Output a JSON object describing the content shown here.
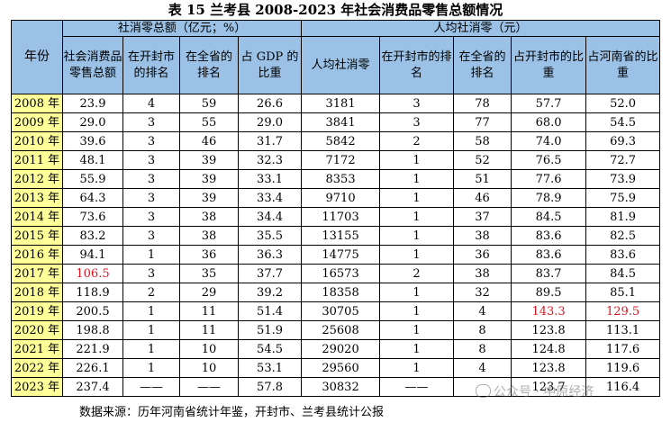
{
  "title": "表 15  兰考县 2008-2023 年社会消费品零售总额情况",
  "headers": {
    "year": "年份",
    "group_total": "社消零总额（亿元；%）",
    "group_percapita": "人均社消零（元）",
    "total_value": "社会消费品零售总额",
    "total_kaifeng_rank": "在开封市的排名",
    "total_province_rank": "在全省的排名",
    "total_gdp_share": "占 GDP 的比重",
    "pc_value": "人均社消零",
    "pc_kaifeng_rank": "在开封市的排名",
    "pc_province_rank": "在全省的排名",
    "pc_kaifeng_share": "占开封市的比重",
    "pc_henan_share": "占河南省的比重"
  },
  "rows": [
    {
      "year": "2008 年",
      "total": "23.9",
      "kf_rank": "4",
      "prov_rank": "59",
      "gdp_share": "26.6",
      "pc": "3181",
      "pc_kf_rank": "3",
      "pc_prov_rank": "78",
      "pc_kf_share": "57.7",
      "pc_hn_share": "52.0"
    },
    {
      "year": "2009 年",
      "total": "29.0",
      "kf_rank": "3",
      "prov_rank": "55",
      "gdp_share": "29.0",
      "pc": "3841",
      "pc_kf_rank": "3",
      "pc_prov_rank": "77",
      "pc_kf_share": "68.0",
      "pc_hn_share": "54.5"
    },
    {
      "year": "2010 年",
      "total": "39.6",
      "kf_rank": "3",
      "prov_rank": "46",
      "gdp_share": "31.7",
      "pc": "5842",
      "pc_kf_rank": "2",
      "pc_prov_rank": "58",
      "pc_kf_share": "74.0",
      "pc_hn_share": "69.3"
    },
    {
      "year": "2011 年",
      "total": "48.1",
      "kf_rank": "3",
      "prov_rank": "39",
      "gdp_share": "32.3",
      "pc": "7172",
      "pc_kf_rank": "1",
      "pc_prov_rank": "52",
      "pc_kf_share": "76.5",
      "pc_hn_share": "72.7"
    },
    {
      "year": "2012 年",
      "total": "55.9",
      "kf_rank": "3",
      "prov_rank": "39",
      "gdp_share": "33.1",
      "pc": "8353",
      "pc_kf_rank": "1",
      "pc_prov_rank": "51",
      "pc_kf_share": "77.6",
      "pc_hn_share": "73.9"
    },
    {
      "year": "2013 年",
      "total": "64.3",
      "kf_rank": "3",
      "prov_rank": "39",
      "gdp_share": "33.4",
      "pc": "9710",
      "pc_kf_rank": "1",
      "pc_prov_rank": "46",
      "pc_kf_share": "78.9",
      "pc_hn_share": "75.9"
    },
    {
      "year": "2014 年",
      "total": "73.6",
      "kf_rank": "3",
      "prov_rank": "38",
      "gdp_share": "34.4",
      "pc": "11703",
      "pc_kf_rank": "1",
      "pc_prov_rank": "37",
      "pc_kf_share": "84.5",
      "pc_hn_share": "81.9"
    },
    {
      "year": "2015 年",
      "total": "83.2",
      "kf_rank": "3",
      "prov_rank": "38",
      "gdp_share": "35.5",
      "pc": "13155",
      "pc_kf_rank": "1",
      "pc_prov_rank": "38",
      "pc_kf_share": "83.6",
      "pc_hn_share": "82.5"
    },
    {
      "year": "2016 年",
      "total": "94.1",
      "kf_rank": "1",
      "prov_rank": "36",
      "gdp_share": "36.3",
      "pc": "14775",
      "pc_kf_rank": "1",
      "pc_prov_rank": "36",
      "pc_kf_share": "83.6",
      "pc_hn_share": "83.6"
    },
    {
      "year": "2017 年",
      "total": "106.5",
      "kf_rank": "3",
      "prov_rank": "35",
      "gdp_share": "37.7",
      "pc": "16573",
      "pc_kf_rank": "2",
      "pc_prov_rank": "38",
      "pc_kf_share": "83.7",
      "pc_hn_share": "84.5"
    },
    {
      "year": "2018 年",
      "total": "118.9",
      "kf_rank": "2",
      "prov_rank": "29",
      "gdp_share": "39.2",
      "pc": "18358",
      "pc_kf_rank": "1",
      "pc_prov_rank": "32",
      "pc_kf_share": "89.5",
      "pc_hn_share": "85.1"
    },
    {
      "year": "2019 年",
      "total": "200.5",
      "kf_rank": "1",
      "prov_rank": "11",
      "gdp_share": "51.4",
      "pc": "30705",
      "pc_kf_rank": "1",
      "pc_prov_rank": "4",
      "pc_kf_share": "143.3",
      "pc_hn_share": "129.5"
    },
    {
      "year": "2020 年",
      "total": "198.8",
      "kf_rank": "1",
      "prov_rank": "11",
      "gdp_share": "51.9",
      "pc": "25608",
      "pc_kf_rank": "1",
      "pc_prov_rank": "8",
      "pc_kf_share": "123.8",
      "pc_hn_share": "113.1"
    },
    {
      "year": "2021 年",
      "total": "221.9",
      "kf_rank": "1",
      "prov_rank": "10",
      "gdp_share": "54.5",
      "pc": "29020",
      "pc_kf_rank": "1",
      "pc_prov_rank": "8",
      "pc_kf_share": "124.8",
      "pc_hn_share": "117.6"
    },
    {
      "year": "2022 年",
      "total": "226.1",
      "kf_rank": "1",
      "prov_rank": "10",
      "gdp_share": "53.1",
      "pc": "29560",
      "pc_kf_rank": "1",
      "pc_prov_rank": "4",
      "pc_kf_share": "123.8",
      "pc_hn_share": "119.6"
    },
    {
      "year": "2023 年",
      "total": "237.4",
      "kf_rank": "——",
      "prov_rank": "——",
      "gdp_share": "57.8",
      "pc": "30832",
      "pc_kf_rank": "——",
      "pc_prov_rank": "",
      "pc_kf_share": "123.7",
      "pc_hn_share": "116.4"
    }
  ],
  "highlight_color": "#e0141e",
  "highlights": [
    "9.total",
    "11.pc_kf_share",
    "11.pc_hn_share"
  ],
  "watermark": "公众号 · 中原经济",
  "source": "数据来源：历年河南省统计年鉴，开封市、兰考县统计公报"
}
